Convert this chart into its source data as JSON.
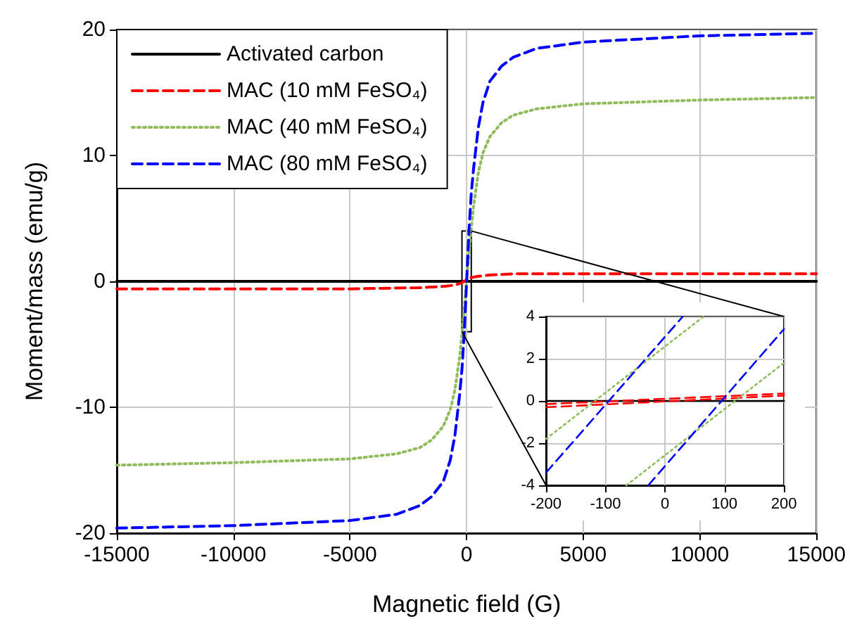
{
  "chart_data": [
    {
      "type": "line",
      "xlabel": "Magnetic field (G)",
      "ylabel": "Moment/mass (emu/g)",
      "xlim": [
        -15000,
        15000
      ],
      "ylim": [
        -20,
        20
      ],
      "xticks": [
        -15000,
        -10000,
        -5000,
        0,
        5000,
        10000,
        15000
      ],
      "yticks": [
        -20,
        -10,
        0,
        10,
        20
      ],
      "grid": true,
      "legend": "top left",
      "series": [
        {
          "name": "Activated carbon",
          "color": "#000000",
          "line_style": "solid",
          "x": [
            -15000,
            15000
          ],
          "values": [
            0,
            0
          ]
        },
        {
          "name": "MAC (10 mM FeSO₄)",
          "color": "#ff0000",
          "line_style": "dashed",
          "x": [
            -15000,
            -10000,
            -5000,
            -2000,
            -1000,
            -500,
            -200,
            0,
            200,
            500,
            1000,
            2000,
            5000,
            10000,
            15000
          ],
          "values": [
            -0.6,
            -0.6,
            -0.6,
            -0.5,
            -0.4,
            -0.3,
            -0.1,
            0.1,
            0.3,
            0.4,
            0.5,
            0.6,
            0.6,
            0.6,
            0.6
          ]
        },
        {
          "name": "MAC (40 mM FeSO₄)",
          "color": "#8fbc5a",
          "line_style": "dotted",
          "x": [
            -15000,
            -10000,
            -5000,
            -3000,
            -2000,
            -1500,
            -1000,
            -700,
            -500,
            -300,
            -200,
            -100,
            0,
            100,
            200,
            300,
            500,
            700,
            1000,
            1500,
            2000,
            3000,
            5000,
            10000,
            15000
          ],
          "values": [
            -14.6,
            -14.4,
            -14.1,
            -13.7,
            -13.2,
            -12.6,
            -11.5,
            -10.2,
            -8.6,
            -6,
            -4.2,
            -2.2,
            0,
            2.2,
            4.2,
            6,
            8.6,
            10.2,
            11.5,
            12.6,
            13.2,
            13.7,
            14.1,
            14.4,
            14.6
          ]
        },
        {
          "name": "MAC (80 mM FeSO₄)",
          "color": "#0000ff",
          "line_style": "dashed",
          "x": [
            -15000,
            -10000,
            -5000,
            -3000,
            -2000,
            -1500,
            -1000,
            -700,
            -500,
            -300,
            -200,
            -100,
            0,
            100,
            200,
            300,
            500,
            700,
            1000,
            1500,
            2000,
            3000,
            5000,
            10000,
            15000
          ],
          "values": [
            -19.6,
            -19.4,
            -19,
            -18.5,
            -17.8,
            -17.1,
            -15.9,
            -14.2,
            -12.2,
            -9,
            -7,
            -4,
            0,
            4,
            7,
            9,
            12.2,
            14.2,
            15.9,
            17.1,
            17.8,
            18.5,
            19,
            19.5,
            19.7
          ]
        }
      ]
    },
    {
      "type": "line",
      "xlim": [
        -200,
        200
      ],
      "ylim": [
        -4,
        4
      ],
      "xticks": [
        -200,
        -100,
        0,
        100,
        200
      ],
      "yticks": [
        -4,
        -2,
        0,
        2,
        4
      ],
      "grid": true,
      "series": [
        {
          "color": "#000000",
          "line_style": "solid",
          "x": [
            -200,
            200
          ],
          "values": [
            0,
            0
          ]
        },
        {
          "color": "#ff0000",
          "line_style": "dashed",
          "x": [
            -200,
            200
          ],
          "values": [
            -0.15,
            0.35
          ]
        },
        {
          "color": "#ff0000",
          "line_style": "dashed",
          "x": [
            -200,
            200
          ],
          "values": [
            -0.3,
            0.25
          ]
        },
        {
          "color": "#8fbc5a",
          "line_style": "dotted",
          "x": [
            -200,
            65
          ],
          "values": [
            -1.8,
            4
          ]
        },
        {
          "color": "#8fbc5a",
          "line_style": "dotted",
          "x": [
            -65,
            200
          ],
          "values": [
            -4,
            1.8
          ]
        },
        {
          "color": "#0000ff",
          "line_style": "dashed",
          "x": [
            -200,
            30
          ],
          "values": [
            -3.4,
            4
          ]
        },
        {
          "color": "#0000ff",
          "line_style": "dashed",
          "x": [
            -28,
            200
          ],
          "values": [
            -4,
            3.4
          ]
        }
      ]
    }
  ]
}
